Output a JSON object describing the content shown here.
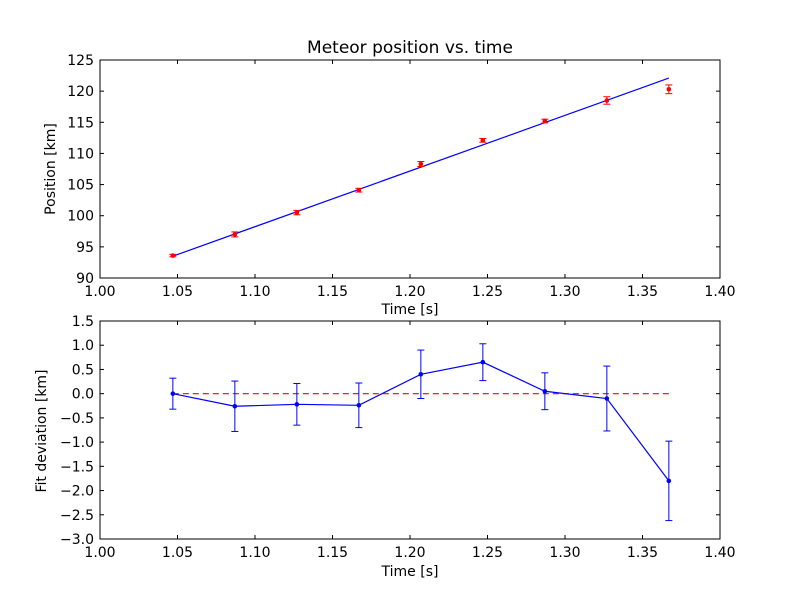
{
  "chart_data": [
    {
      "type": "scatter",
      "title": "Meteor position vs. time",
      "xlabel": "Time [s]",
      "ylabel": "Position [km]",
      "xlim": [
        1.0,
        1.4
      ],
      "ylim": [
        90,
        125
      ],
      "xticks": [
        "1.00",
        "1.05",
        "1.10",
        "1.15",
        "1.20",
        "1.25",
        "1.30",
        "1.35",
        "1.40"
      ],
      "yticks": [
        "90",
        "95",
        "100",
        "105",
        "110",
        "115",
        "120",
        "125"
      ],
      "grid": false,
      "series": [
        {
          "kind": "errorbar-points",
          "color": "#ff0000",
          "x": [
            1.047,
            1.087,
            1.127,
            1.167,
            1.207,
            1.247,
            1.287,
            1.327,
            1.367
          ],
          "y": [
            93.6,
            97.0,
            100.5,
            104.1,
            108.3,
            112.1,
            115.2,
            118.5,
            120.3
          ],
          "yerr": [
            0.2,
            0.4,
            0.35,
            0.3,
            0.4,
            0.3,
            0.3,
            0.6,
            0.7
          ]
        },
        {
          "kind": "fit-line",
          "color": "#0000ff",
          "x": [
            1.047,
            1.367
          ],
          "y": [
            93.5,
            122.1
          ]
        }
      ]
    },
    {
      "type": "line",
      "title": "",
      "xlabel": "Time [s]",
      "ylabel": "Fit deviation [km]",
      "xlim": [
        1.0,
        1.4
      ],
      "ylim": [
        -3.0,
        1.5
      ],
      "xticks": [
        "1.00",
        "1.05",
        "1.10",
        "1.15",
        "1.20",
        "1.25",
        "1.30",
        "1.35",
        "1.40"
      ],
      "yticks": [
        "−3.0",
        "−2.5",
        "−2.0",
        "−1.5",
        "−1.0",
        "−0.5",
        "0.0",
        "0.5",
        "1.0",
        "1.5"
      ],
      "grid": false,
      "series": [
        {
          "kind": "errorbar-line",
          "color": "#0000ff",
          "x": [
            1.047,
            1.087,
            1.127,
            1.167,
            1.207,
            1.247,
            1.287,
            1.327,
            1.367
          ],
          "y": [
            0.0,
            -0.26,
            -0.22,
            -0.24,
            0.4,
            0.65,
            0.05,
            -0.1,
            -1.8
          ],
          "yerr": [
            0.32,
            0.52,
            0.43,
            0.46,
            0.5,
            0.38,
            0.38,
            0.67,
            0.82
          ]
        },
        {
          "kind": "reference-line",
          "color": "#ff0000",
          "dashed": true,
          "x": [
            1.047,
            1.367
          ],
          "y": [
            0.0,
            0.0
          ]
        }
      ]
    }
  ]
}
